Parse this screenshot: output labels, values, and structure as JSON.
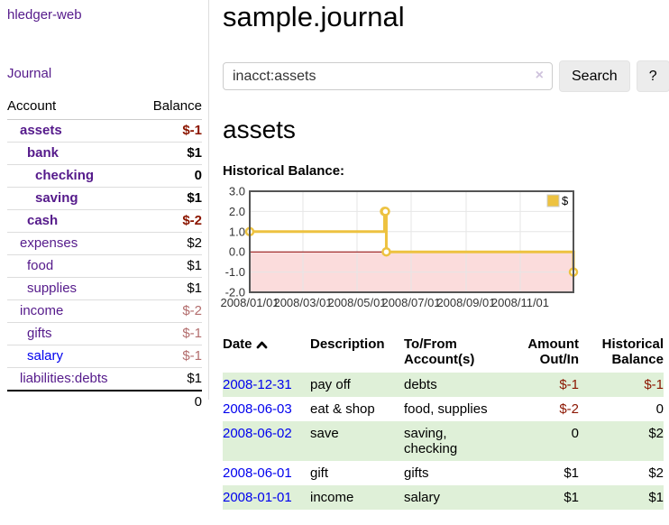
{
  "app": {
    "title": "hledger-web"
  },
  "sidebar": {
    "journal_link": "Journal",
    "accounts_table": {
      "account_header": "Account",
      "balance_header": "Balance",
      "rows": [
        {
          "account": "assets",
          "balance": "$-1",
          "level": 1,
          "in_acct": true,
          "neg": "strong"
        },
        {
          "account": "bank",
          "balance": "$1",
          "level": 2,
          "in_acct": true
        },
        {
          "account": "checking",
          "balance": "0",
          "level": 3,
          "in_acct": true
        },
        {
          "account": "saving",
          "balance": "$1",
          "level": 3,
          "in_acct": true
        },
        {
          "account": "cash",
          "balance": "$-2",
          "level": 2,
          "in_acct": true,
          "neg": "strong"
        },
        {
          "account": "expenses",
          "balance": "$2",
          "level": 1
        },
        {
          "account": "food",
          "balance": "$1",
          "level": 2
        },
        {
          "account": "supplies",
          "balance": "$1",
          "level": 2
        },
        {
          "account": "income",
          "balance": "$-2",
          "level": 1,
          "neg": "muted"
        },
        {
          "account": "gifts",
          "balance": "$-1",
          "level": 2,
          "neg": "muted"
        },
        {
          "account": "salary",
          "balance": "$-1",
          "level": 2,
          "neg": "muted",
          "link": "blue"
        },
        {
          "account": "liabilities:debts",
          "balance": "$1",
          "level": 1
        }
      ],
      "total": "0"
    }
  },
  "header": {
    "title": "sample.journal"
  },
  "search": {
    "value": "inacct:assets",
    "clear_icon": "×",
    "button_label": "Search",
    "help_label": "?"
  },
  "account_page": {
    "heading": "assets",
    "chart_label": "Historical Balance:"
  },
  "chart_data": {
    "type": "line",
    "step": true,
    "title": "Historical Balance",
    "series": [
      {
        "name": "$",
        "color": "#edc240",
        "points": [
          {
            "x": "2008-01-01",
            "y": 1
          },
          {
            "x": "2008-06-01",
            "y": 2
          },
          {
            "x": "2008-06-02",
            "y": 2
          },
          {
            "x": "2008-06-03",
            "y": 0
          },
          {
            "x": "2008-12-31",
            "y": -1
          }
        ]
      }
    ],
    "x_range": [
      "2008-01-01",
      "2008-12-31"
    ],
    "ylim": [
      -2,
      3
    ],
    "y_ticks": [
      3.0,
      2.0,
      1.0,
      0.0,
      -1.0,
      -2.0
    ],
    "x_ticks": [
      {
        "date": "2008-01-01",
        "label": "2008/01/01"
      },
      {
        "date": "2008-03-01",
        "label": "2008/03/01"
      },
      {
        "date": "2008-05-01",
        "label": "2008/05/01"
      },
      {
        "date": "2008-07-01",
        "label": "2008/07/01"
      },
      {
        "date": "2008-09-01",
        "label": "2008/09/01"
      },
      {
        "date": "2008-11-01",
        "label": "2008/11/01"
      }
    ],
    "grid": true,
    "grid_color": "#e6e6e6",
    "frame_color": "#545454",
    "negative_fill": "#fbdcdc",
    "zero_line_color": "#8b0000",
    "legend": {
      "label": "$",
      "position": "top-right"
    }
  },
  "register": {
    "headers": {
      "date": "Date",
      "description": "Description",
      "accounts": "To/From Account(s)",
      "amount": "Amount Out/In",
      "balance": "Historical Balance"
    },
    "rows": [
      {
        "date": "2008-12-31",
        "description": "pay off",
        "accounts": "debts",
        "amount": "$-1",
        "amount_neg": true,
        "balance": "$-1",
        "balance_neg": true
      },
      {
        "date": "2008-06-03",
        "description": "eat & shop",
        "accounts": "food, supplies",
        "amount": "$-2",
        "amount_neg": true,
        "balance": "0"
      },
      {
        "date": "2008-06-02",
        "description": "save",
        "accounts": "saving, checking",
        "amount": "0",
        "balance": "$2"
      },
      {
        "date": "2008-06-01",
        "description": "gift",
        "accounts": "gifts",
        "amount": "$1",
        "balance": "$2"
      },
      {
        "date": "2008-01-01",
        "description": "income",
        "accounts": "salary",
        "amount": "$1",
        "balance": "$1"
      }
    ]
  },
  "colors": {
    "link_purple": "#551a8b",
    "link_blue": "#0000ee",
    "negative_strong": "#8b1500",
    "negative_muted": "#b36d6d",
    "row_highlight_green": "#dff0d8",
    "chart_line_gold": "#edc240",
    "chart_negative_area_pink": "#fbdcdc",
    "chart_zero_line_red": "#8b0000",
    "button_gray": "#ececec"
  }
}
